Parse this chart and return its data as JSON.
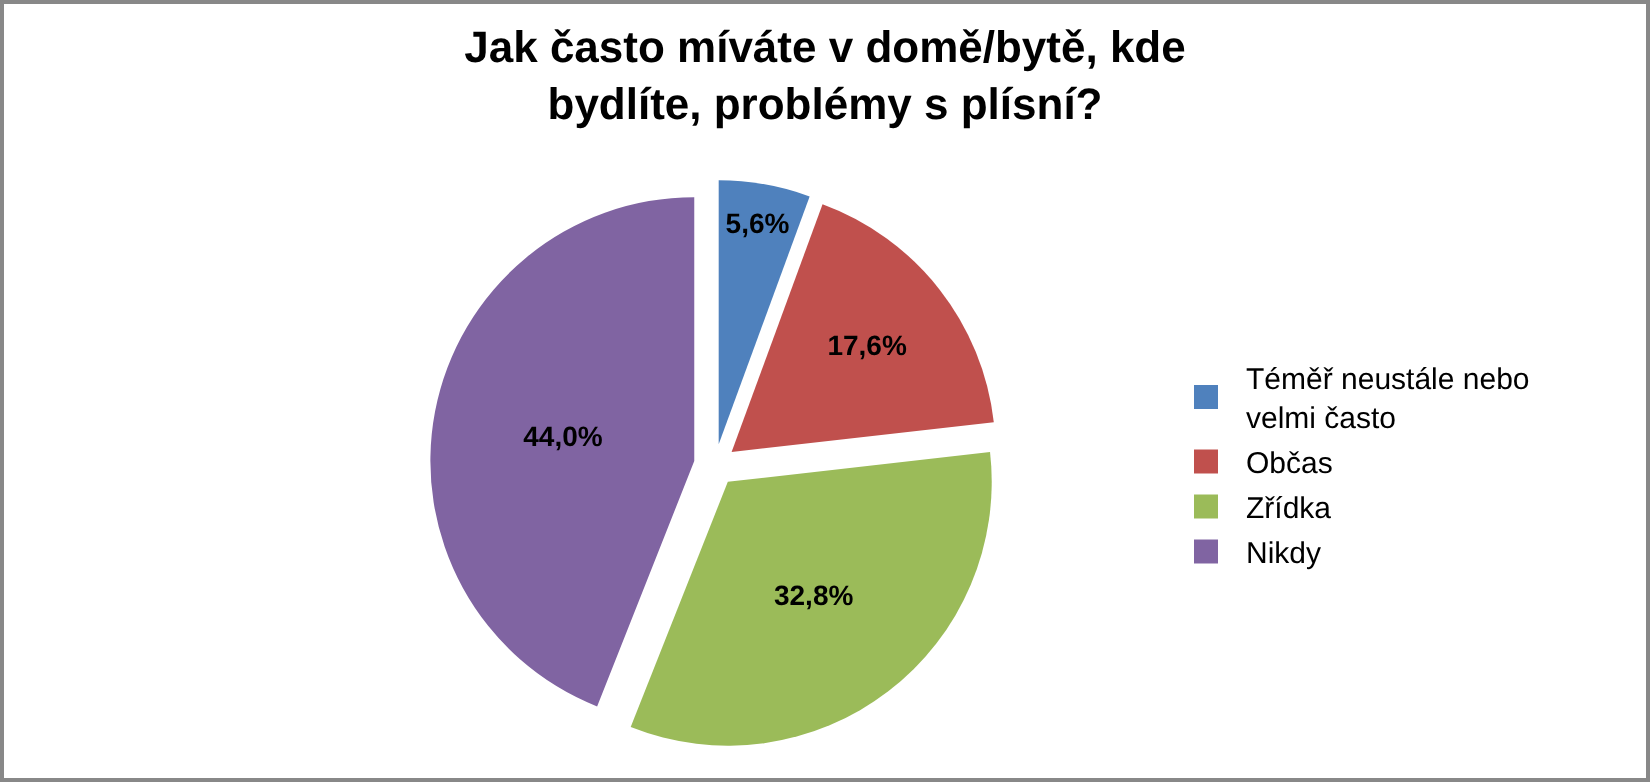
{
  "chart_data": {
    "type": "pie",
    "title": "Jak často míváte v domě/bytě, kde bydlíte, problémy s plísní?",
    "categories": [
      "Téměř neustále nebo velmi často",
      "Občas",
      "Zřídka",
      "Nikdy"
    ],
    "values": [
      5.6,
      17.6,
      32.8,
      44.0
    ],
    "colors": [
      "#4f81bd",
      "#c0504d",
      "#9bbb59",
      "#8064a2"
    ],
    "value_labels": [
      "5,6%",
      "17,6%",
      "32,8%",
      "44,0%"
    ],
    "legend": "right"
  }
}
